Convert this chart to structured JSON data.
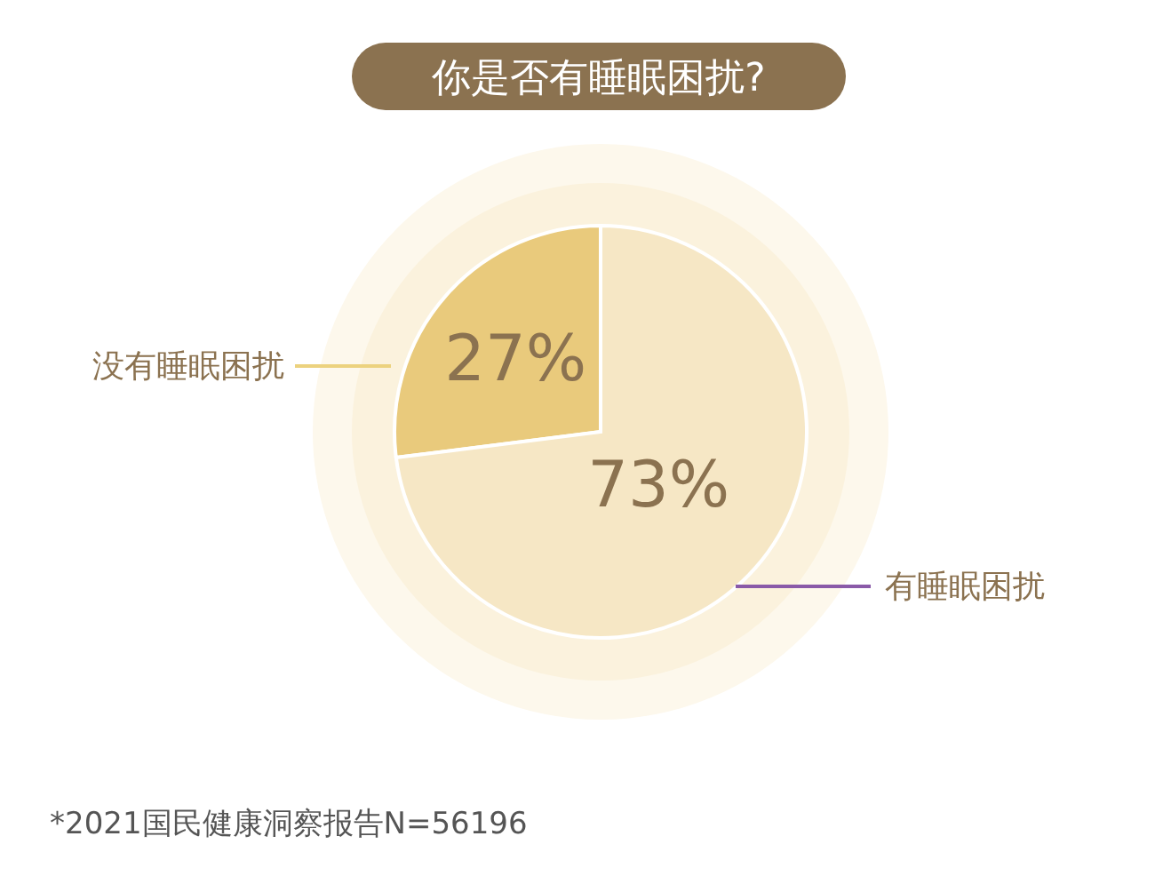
{
  "chart_data": {
    "type": "pie",
    "title": "你是否有睡眠困扰?",
    "categories": [
      "没有睡眠困扰",
      "有睡眠困扰"
    ],
    "values": [
      27,
      73
    ],
    "colors": [
      "#e9ca7c",
      "#f6e7c5"
    ],
    "value_labels": [
      "27%",
      "73%"
    ],
    "annotations": [
      "*2021国民健康洞察报告N=56196"
    ]
  }
}
